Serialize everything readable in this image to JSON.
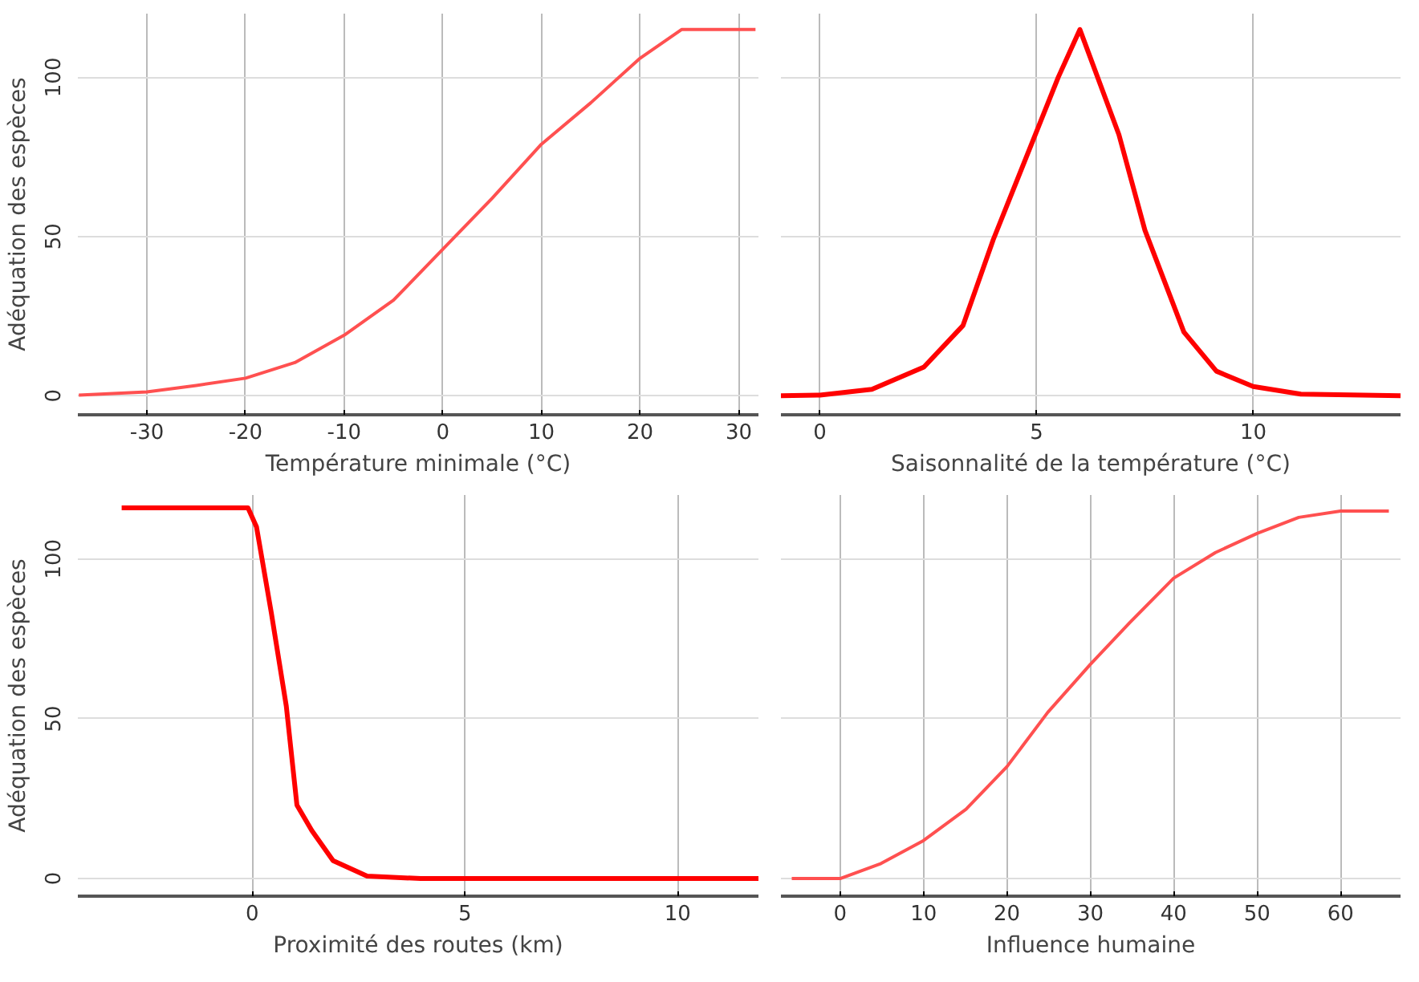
{
  "chart_data": [
    {
      "type": "line",
      "xlabel": "Température minimale (°C)",
      "ylabel": "Adéquation des espèces",
      "xlim": [
        -37,
        32
      ],
      "ylim": [
        -6,
        120
      ],
      "xticks": [
        -30,
        -20,
        -10,
        0,
        10,
        20,
        30
      ],
      "yticks": [
        0,
        50,
        100
      ],
      "grid": true,
      "x": [
        -36.9,
        -30,
        -25,
        -20,
        -15,
        -10,
        -5,
        0,
        5,
        10,
        15,
        20,
        24.2,
        31.7
      ],
      "series": [
        {
          "color": "#ff5050",
          "values": [
            0.2,
            1.2,
            3.2,
            5.5,
            10.4,
            19,
            30,
            46,
            62,
            79,
            92,
            106,
            115,
            115
          ]
        }
      ]
    },
    {
      "type": "line",
      "xlabel": "Saisonnalité de la température (°C)",
      "xlim": [
        -0.9,
        13.4
      ],
      "ylim": [
        -6,
        120
      ],
      "xticks": [
        0,
        5,
        10
      ],
      "yticks": [
        0,
        50,
        100
      ],
      "grid": true,
      "tick_labels": "x",
      "x": [
        -0.9,
        0,
        1.2,
        2.4,
        3.3,
        4,
        5,
        5.5,
        6.0,
        6.9,
        7.5,
        8.4,
        9.15,
        10,
        11.1,
        13.4
      ],
      "series": [
        {
          "color": "#ff0000",
          "values": [
            0,
            0.2,
            2,
            9,
            22,
            49,
            83,
            100,
            115,
            82,
            52,
            20,
            7.7,
            2.9,
            0.5,
            0
          ]
        }
      ]
    },
    {
      "type": "line",
      "xlabel": "Proximité des routes (km)",
      "ylabel": "Adéquation des espèces",
      "xlim": [
        -4.1,
        11.9
      ],
      "ylim": [
        -5.5,
        120
      ],
      "xticks": [
        0,
        5,
        10
      ],
      "yticks": [
        0,
        50,
        100
      ],
      "grid": true,
      "x": [
        -3.07,
        -0.1,
        0.1,
        0.45,
        0.8,
        1.05,
        1.4,
        1.9,
        2.7,
        3.96,
        11.9
      ],
      "series": [
        {
          "color": "#ff0000",
          "values": [
            116,
            116,
            110,
            83,
            54,
            23,
            15,
            5.6,
            0.8,
            0,
            0
          ]
        }
      ]
    },
    {
      "type": "line",
      "xlabel": "Influence humaine",
      "xlim": [
        -7.1,
        67.2
      ],
      "ylim": [
        -5.5,
        120
      ],
      "xticks": [
        0,
        10,
        20,
        30,
        40,
        50,
        60
      ],
      "yticks": [
        0,
        50,
        100
      ],
      "grid": true,
      "tick_labels": "x",
      "x": [
        -5.8,
        0,
        4.9,
        10,
        15.1,
        20,
        24.9,
        30,
        34.7,
        40,
        45,
        50,
        55,
        60,
        65.8
      ],
      "series": [
        {
          "color": "#ff5050",
          "values": [
            0,
            0,
            4.7,
            11.9,
            21.7,
            35,
            52,
            67,
            80,
            94,
            102,
            108,
            113,
            115,
            115
          ]
        }
      ]
    }
  ]
}
